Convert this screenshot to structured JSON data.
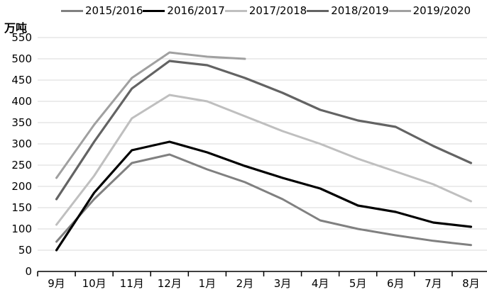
{
  "chart_data": {
    "type": "line",
    "title": "",
    "xlabel": "",
    "ylabel": "万吨",
    "ylim": [
      0,
      550
    ],
    "ytick_step": 50,
    "grid": true,
    "legend_position": "top",
    "gridline_color": "#d9d9d9",
    "axis_color": "#000000",
    "categories": [
      "9月",
      "10月",
      "11月",
      "12月",
      "1月",
      "2月",
      "3月",
      "4月",
      "5月",
      "6月",
      "7月",
      "8月"
    ],
    "series": [
      {
        "name": "2015/2016",
        "color": "#808080",
        "width": 3,
        "values": [
          70,
          170,
          255,
          275,
          240,
          210,
          170,
          120,
          100,
          85,
          72,
          62
        ]
      },
      {
        "name": "2016/2017",
        "color": "#000000",
        "width": 3.2,
        "values": [
          50,
          185,
          285,
          305,
          280,
          248,
          220,
          195,
          155,
          140,
          115,
          105
        ]
      },
      {
        "name": "2017/2018",
        "color": "#bfbfbf",
        "width": 3,
        "values": [
          110,
          225,
          360,
          415,
          400,
          365,
          330,
          300,
          265,
          235,
          205,
          165
        ]
      },
      {
        "name": "2018/2019",
        "color": "#636363",
        "width": 3.2,
        "values": [
          170,
          305,
          430,
          495,
          485,
          455,
          420,
          380,
          355,
          340,
          295,
          255
        ]
      },
      {
        "name": "2019/2020",
        "color": "#a0a0a0",
        "width": 3,
        "values": [
          220,
          345,
          455,
          515,
          505,
          500
        ]
      }
    ]
  }
}
